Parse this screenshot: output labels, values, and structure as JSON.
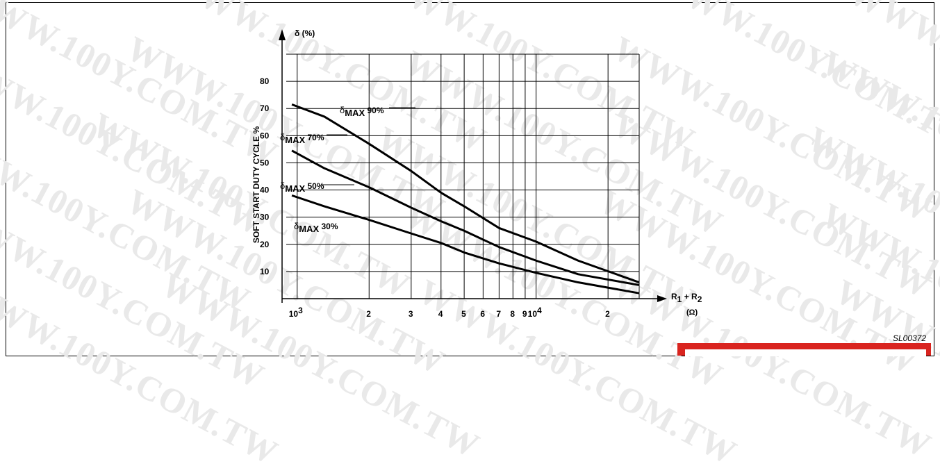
{
  "watermark": {
    "text": "WWW.100Y.COM.TW"
  },
  "figure_id": "SL00372",
  "chart_data": {
    "type": "line",
    "y_axis": {
      "unit_label": "δ (%)",
      "title": "SOFT START DUTY CYCLE %",
      "ticks": [
        10,
        20,
        30,
        40,
        50,
        60,
        70,
        80
      ],
      "ylim": [
        0,
        90
      ]
    },
    "x_axis": {
      "scale": "log",
      "label_main": "R1 + R2",
      "label_unit": "(Ω)",
      "xlim": [
        900,
        27000
      ],
      "ticks": [
        {
          "value": 1000,
          "label": "10",
          "sup": "3"
        },
        {
          "value": 2000,
          "label": "2",
          "sup": ""
        },
        {
          "value": 3000,
          "label": "3",
          "sup": ""
        },
        {
          "value": 4000,
          "label": "4",
          "sup": ""
        },
        {
          "value": 5000,
          "label": "5",
          "sup": ""
        },
        {
          "value": 6000,
          "label": "6",
          "sup": ""
        },
        {
          "value": 7000,
          "label": "7",
          "sup": ""
        },
        {
          "value": 8000,
          "label": "8",
          "sup": ""
        },
        {
          "value": 9000,
          "label": "9",
          "sup": ""
        },
        {
          "value": 10000,
          "label": "10",
          "sup": "4"
        },
        {
          "value": 20000,
          "label": "2",
          "sup": ""
        }
      ]
    },
    "grid": true,
    "series": [
      {
        "name": "δMAX 90%",
        "label_sub": "MAX",
        "label_val": "90%",
        "x": [
          950,
          1300,
          2000,
          3000,
          4000,
          5000,
          7000,
          10000,
          15000,
          27000
        ],
        "y": [
          71.5,
          67,
          57,
          47,
          39,
          34,
          26,
          21,
          14,
          6
        ]
      },
      {
        "name": "δMAX 70%",
        "label_sub": "MAX",
        "label_val": "70%",
        "x": [
          950,
          1300,
          2000,
          3000,
          4000,
          5000,
          7000,
          10000,
          15000,
          27000
        ],
        "y": [
          54.5,
          48,
          41,
          33.5,
          28.5,
          25,
          19,
          14,
          9,
          5
        ]
      },
      {
        "name": "δMAX 50%",
        "label_sub": "MAX",
        "label_val": "50%",
        "x": [
          950,
          1300,
          2000,
          3000,
          4000,
          5000,
          7000,
          10000,
          15000,
          27000
        ],
        "y": [
          38,
          34,
          29,
          24,
          20.5,
          17,
          13,
          9.5,
          6,
          2
        ]
      }
    ],
    "extra_annotations": [
      {
        "name": "δMAX 30%",
        "label_sub": "MAX",
        "label_val": "30%"
      }
    ]
  }
}
